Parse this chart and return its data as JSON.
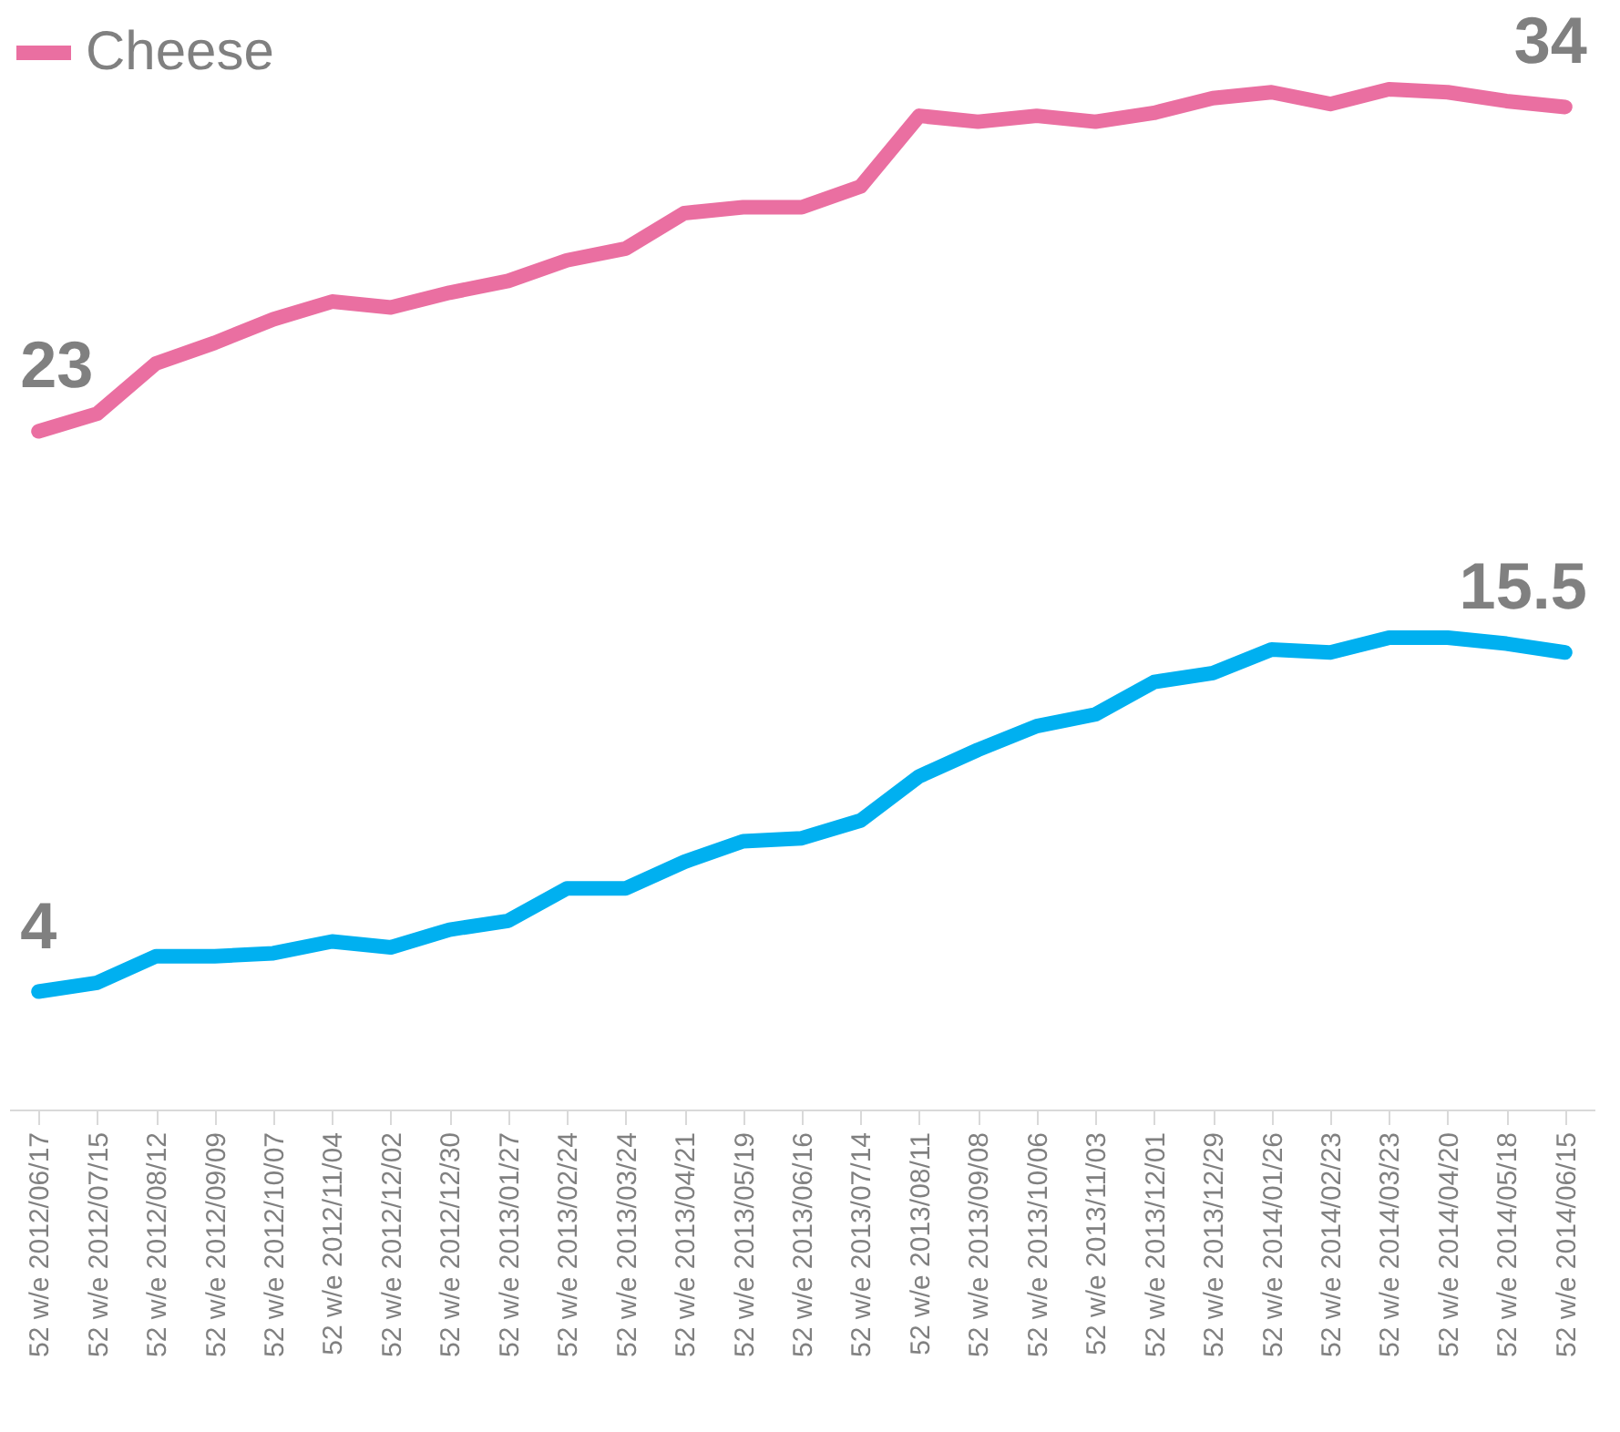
{
  "chart_data": {
    "type": "line",
    "categories": [
      "52 w/e 2012/06/17",
      "52 w/e 2012/07/15",
      "52 w/e 2012/08/12",
      "52 w/e 2012/09/09",
      "52 w/e 2012/10/07",
      "52 w/e 2012/11/04",
      "52 w/e 2012/12/02",
      "52 w/e 2012/12/30",
      "52 w/e 2013/01/27",
      "52 w/e 2013/02/24",
      "52 w/e 2013/03/24",
      "52 w/e 2013/04/21",
      "52 w/e 2013/05/19",
      "52 w/e 2013/06/16",
      "52 w/e 2013/07/14",
      "52 w/e 2013/08/11",
      "52 w/e 2013/09/08",
      "52 w/e 2013/10/06",
      "52 w/e 2013/11/03",
      "52 w/e 2013/12/01",
      "52 w/e 2013/12/29",
      "52 w/e 2014/01/26",
      "52 w/e 2014/02/23",
      "52 w/e 2014/03/23",
      "52 w/e 2014/04/20",
      "52 w/e 2014/05/18",
      "52 w/e 2014/06/15"
    ],
    "series": [
      {
        "name": "Cheese",
        "color": "#ea6fa1",
        "values": [
          23,
          23.6,
          25.3,
          26.0,
          26.8,
          27.4,
          27.2,
          27.7,
          28.1,
          28.8,
          29.2,
          30.4,
          30.6,
          30.6,
          31.3,
          33.7,
          33.5,
          33.7,
          33.5,
          33.8,
          34.3,
          34.5,
          34.1,
          34.6,
          34.5,
          34.2,
          34
        ],
        "value_labels": [
          "23",
          null,
          null,
          null,
          null,
          null,
          null,
          null,
          null,
          null,
          null,
          null,
          null,
          null,
          null,
          null,
          null,
          null,
          null,
          null,
          null,
          null,
          null,
          null,
          null,
          null,
          "34"
        ]
      },
      {
        "color": "#00b0f0",
        "values": [
          4,
          4.3,
          5.2,
          5.2,
          5.3,
          5.7,
          5.5,
          6.1,
          6.4,
          7.5,
          7.5,
          8.4,
          9.1,
          9.2,
          9.8,
          11.3,
          12.2,
          13.0,
          13.4,
          14.5,
          14.8,
          15.6,
          15.5,
          16.0,
          16.0,
          15.8,
          15.5
        ],
        "value_labels": [
          "4",
          null,
          null,
          null,
          null,
          null,
          null,
          null,
          null,
          null,
          null,
          null,
          null,
          null,
          null,
          null,
          null,
          null,
          null,
          null,
          null,
          null,
          null,
          null,
          null,
          null,
          "15.5"
        ]
      }
    ],
    "legend": "top"
  }
}
